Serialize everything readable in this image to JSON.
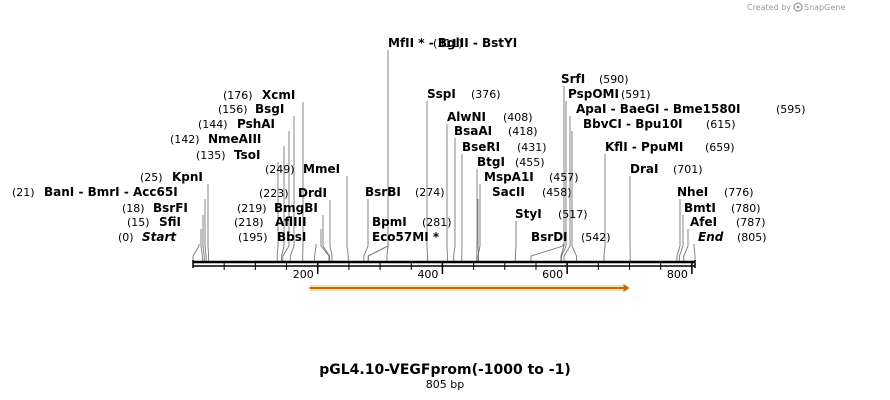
{
  "credit": {
    "prefix": "Created by",
    "brand": "SnapGene"
  },
  "title": "pGL4.10-VEGFprom(-1000 to -1)",
  "length": "805 bp",
  "map_scale": {
    "start_bp": 0,
    "end_bp": 805
  },
  "ticks": [
    {
      "label": "200",
      "bp": 200
    },
    {
      "label": "400",
      "bp": 400
    },
    {
      "label": "600",
      "bp": 600
    },
    {
      "label": "800",
      "bp": 800
    }
  ],
  "feature": {
    "start_bp": 187,
    "end_bp": 700,
    "color": "#e3a018"
  },
  "site_groups": [
    {
      "positions": "(311)",
      "sites": [
        {
          "text": "MfII *",
          "bp": 311
        },
        {
          "text": "BglII"
        },
        {
          "text": "BstYI"
        }
      ]
    },
    {
      "positions": "(176)",
      "sites": [
        {
          "text": "XcmI",
          "bp": 176
        }
      ]
    },
    {
      "positions": "(156)",
      "sites": [
        {
          "text": "BsgI",
          "bp": 156
        }
      ]
    },
    {
      "positions": "(144)",
      "sites": [
        {
          "text": "PshAI",
          "bp": 144
        }
      ]
    },
    {
      "positions": "(142)",
      "sites": [
        {
          "text": "NmeAIII",
          "bp": 142
        }
      ]
    },
    {
      "positions": "(135)",
      "sites": [
        {
          "text": "TsoI",
          "bp": 135
        }
      ]
    },
    {
      "positions": "(249)",
      "sites": [
        {
          "text": "MmeI",
          "bp": 249
        }
      ]
    },
    {
      "positions": "(223)",
      "sites": [
        {
          "text": "DrdI",
          "bp": 223
        }
      ]
    },
    {
      "positions": "(219)",
      "sites": [
        {
          "text": "BmgBI",
          "bp": 219
        }
      ]
    },
    {
      "positions": "(218)",
      "sites": [
        {
          "text": "AflIII",
          "bp": 218
        }
      ]
    },
    {
      "positions": "(195)",
      "sites": [
        {
          "text": "BbsI",
          "bp": 195
        }
      ]
    },
    {
      "positions": "(25)",
      "sites": [
        {
          "text": "KpnI",
          "bp": 25
        }
      ]
    },
    {
      "positions": "(21)",
      "sites": [
        {
          "text": "BanI",
          "bp": 21
        },
        {
          "text": "BmrI"
        },
        {
          "text": "Acc65I"
        }
      ]
    },
    {
      "positions": "(18)",
      "sites": [
        {
          "text": "BsrFI",
          "bp": 18
        }
      ]
    },
    {
      "positions": "(15)",
      "sites": [
        {
          "text": "SfiI",
          "bp": 15
        }
      ]
    },
    {
      "positions": "(0)",
      "sites": [
        {
          "text": "Start",
          "bp": 0,
          "italic": true
        }
      ]
    },
    {
      "positions": "(274)",
      "sites": [
        {
          "text": "BsrBI",
          "bp": 274
        }
      ]
    },
    {
      "positions": "(281)",
      "sites": [
        {
          "text": "BpmI",
          "bp": 281
        }
      ]
    },
    {
      "positions": "",
      "sites": [
        {
          "text": "Eco57MI *",
          "bp": 281
        }
      ]
    },
    {
      "positions": "(376)",
      "sites": [
        {
          "text": "SspI",
          "bp": 376
        }
      ]
    },
    {
      "positions": "(408)",
      "sites": [
        {
          "text": "AlwNI",
          "bp": 408
        }
      ]
    },
    {
      "positions": "(418)",
      "sites": [
        {
          "text": "BsaAI",
          "bp": 418
        }
      ]
    },
    {
      "positions": "(431)",
      "sites": [
        {
          "text": "BseRI",
          "bp": 431
        }
      ]
    },
    {
      "positions": "(455)",
      "sites": [
        {
          "text": "BtgI",
          "bp": 455
        }
      ]
    },
    {
      "positions": "(457)",
      "sites": [
        {
          "text": "MspA1I",
          "bp": 457
        }
      ]
    },
    {
      "positions": "(458)",
      "sites": [
        {
          "text": "SacII",
          "bp": 458
        }
      ]
    },
    {
      "positions": "(517)",
      "sites": [
        {
          "text": "StyI",
          "bp": 517
        }
      ]
    },
    {
      "positions": "(542)",
      "sites": [
        {
          "text": "BsrDI",
          "bp": 542
        }
      ]
    },
    {
      "positions": "(590)",
      "sites": [
        {
          "text": "SrfI",
          "bp": 590
        }
      ]
    },
    {
      "positions": "(591)",
      "sites": [
        {
          "text": "PspOMI",
          "bp": 591
        }
      ]
    },
    {
      "positions": "(595)",
      "sites": [
        {
          "text": "ApaI",
          "bp": 595
        },
        {
          "text": "BaeGI"
        },
        {
          "text": "Bme1580I"
        }
      ]
    },
    {
      "positions": "(615)",
      "sites": [
        {
          "text": "BbvCI",
          "bp": 615
        },
        {
          "text": "Bpu10I"
        }
      ]
    },
    {
      "positions": "(659)",
      "sites": [
        {
          "text": "KflI",
          "bp": 659
        },
        {
          "text": "PpuMI"
        }
      ]
    },
    {
      "positions": "(701)",
      "sites": [
        {
          "text": "DraI",
          "bp": 701
        }
      ]
    },
    {
      "positions": "(776)",
      "sites": [
        {
          "text": "NheI",
          "bp": 776
        }
      ]
    },
    {
      "positions": "(780)",
      "sites": [
        {
          "text": "BmtI",
          "bp": 780
        }
      ]
    },
    {
      "positions": "(787)",
      "sites": [
        {
          "text": "AfeI",
          "bp": 787
        }
      ]
    },
    {
      "positions": "(805)",
      "sites": [
        {
          "text": "End",
          "bp": 805,
          "italic": true
        }
      ]
    }
  ]
}
